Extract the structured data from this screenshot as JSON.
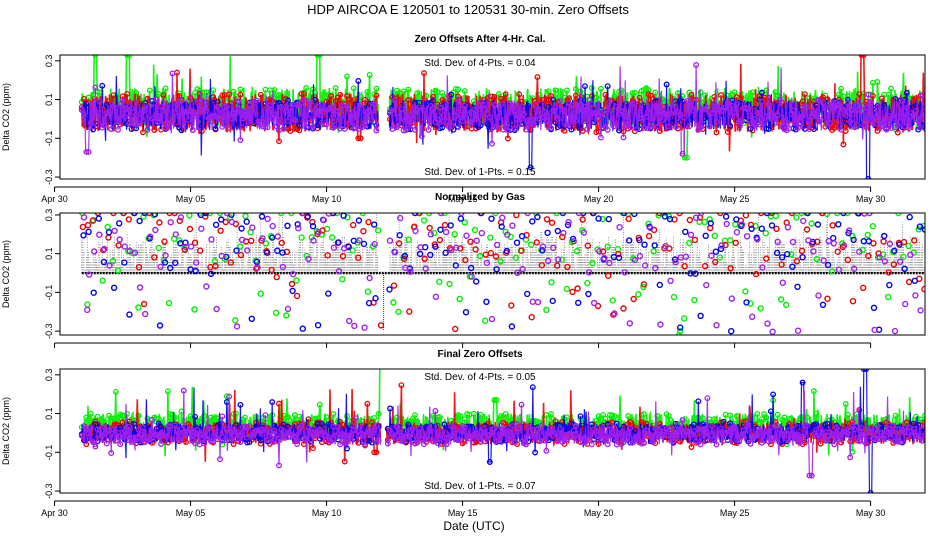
{
  "figure": {
    "title": "HDP    AIRCOA E   120501 to 120531   30-min. Zero Offsets",
    "xlabel": "Date (UTC)"
  },
  "chart_data": [
    {
      "type": "line",
      "title": "Zero Offsets After 4-Hr. Cal.",
      "ylabel": "Delta CO2 (ppm)",
      "ylim": [
        -0.31,
        0.33
      ],
      "yticks": [
        -0.3,
        -0.1,
        0.1,
        0.3
      ],
      "ytick_labels": [
        "-0.3",
        "-0.1",
        "0.1",
        "0.3"
      ],
      "xlim_day": [
        0.2,
        32.0
      ],
      "xticks_day": [
        0,
        5,
        10,
        15,
        20,
        25,
        30
      ],
      "xtick_labels": [
        "Apr 30",
        "May 05",
        "May 10",
        "May 15",
        "May 20",
        "May 25",
        "May 30"
      ],
      "annotation_top": "Std. Dev. of 4-Pts. =  0.04",
      "annotation_bottom": "Std. Dev. of 1-Pts. =  0.15",
      "day_range": [
        1.0,
        32.0
      ],
      "gap": [
        11.9,
        12.3
      ],
      "series": [
        {
          "name": "green",
          "color": "#00ee00",
          "base": 0.06,
          "spread": 0.1,
          "spikes": [
            [
              1.5,
              0.33
            ],
            [
              2.7,
              0.33
            ],
            [
              9.7,
              0.33
            ],
            [
              23.2,
              -0.2
            ]
          ]
        },
        {
          "name": "red",
          "color": "#ee0000",
          "base": 0.03,
          "spread": 0.1,
          "spikes": [
            [
              11.2,
              -0.1
            ],
            [
              29.7,
              0.33
            ]
          ]
        },
        {
          "name": "blue",
          "color": "#0000ee",
          "base": 0.02,
          "spread": 0.08,
          "spikes": [
            [
              12.1,
              -0.31
            ],
            [
              17.5,
              -0.25
            ],
            [
              29.9,
              -0.31
            ]
          ]
        },
        {
          "name": "purple",
          "color": "#a020f0",
          "base": 0.02,
          "spread": 0.08,
          "spikes": [
            [
              1.2,
              -0.17
            ],
            [
              23.1,
              -0.18
            ]
          ]
        }
      ]
    },
    {
      "type": "scatter",
      "title": "Normalized by Gas",
      "ylabel": "Delta CO2 (ppm)",
      "ylim": [
        -0.32,
        0.31
      ],
      "yticks": [
        -0.3,
        -0.1,
        0.1,
        0.3
      ],
      "ytick_labels": [
        "-0.3",
        "-0.1",
        "0.1",
        "0.3"
      ],
      "xlim_day": [
        0.2,
        32.0
      ],
      "xticks_day": [
        0,
        5,
        10,
        15,
        20,
        25,
        30
      ],
      "xtick_labels": [
        "",
        "",
        "",
        "",
        "",
        "",
        ""
      ],
      "annotation_top": "",
      "annotation_bottom": "",
      "day_range": [
        1.0,
        32.0
      ],
      "gap": [
        11.9,
        12.3
      ],
      "baseline": 0.0,
      "series": [
        {
          "name": "black",
          "color": "#000000",
          "base": 0.0,
          "spread": 0.1,
          "spikes": [
            [
              12.1,
              -0.3
            ]
          ]
        },
        {
          "name": "green",
          "color": "#00ee00",
          "base": 0.12,
          "spread": 0.2,
          "spikes": [
            [
              23.0,
              -0.3
            ]
          ]
        },
        {
          "name": "red",
          "color": "#ee0000",
          "base": 0.06,
          "spread": 0.2,
          "spikes": [
            [
              12.0,
              -0.27
            ]
          ]
        },
        {
          "name": "blue",
          "color": "#0000ee",
          "base": 0.02,
          "spread": 0.2,
          "spikes": [
            [
              11.8,
              -0.13
            ]
          ]
        },
        {
          "name": "purple",
          "color": "#a020f0",
          "base": 0.0,
          "spread": 0.2,
          "spikes": [
            [
              1.2,
              -0.19
            ]
          ]
        }
      ]
    },
    {
      "type": "line",
      "title": "Final Zero Offsets",
      "ylabel": "Delta CO2 (ppm)",
      "ylim": [
        -0.31,
        0.33
      ],
      "yticks": [
        -0.3,
        -0.1,
        0.1,
        0.3
      ],
      "ytick_labels": [
        "-0.3",
        "-0.1",
        "0.1",
        "0.3"
      ],
      "xlim_day": [
        0.2,
        32.0
      ],
      "xticks_day": [
        0,
        5,
        10,
        15,
        20,
        25,
        30
      ],
      "xtick_labels": [
        "Apr 30",
        "May 05",
        "May 10",
        "May 15",
        "May 20",
        "May 25",
        "May 30"
      ],
      "annotation_top": "Std. Dev. of 4-Pts. =  0.05",
      "annotation_bottom": "Std. Dev. of 1-Pts. =  0.07",
      "day_range": [
        1.0,
        32.0
      ],
      "gap": [
        12.0,
        12.2
      ],
      "series": [
        {
          "name": "green",
          "color": "#00ee00",
          "base": 0.04,
          "spread": 0.06,
          "spikes": [
            [
              12.0,
              0.33
            ],
            [
              16.2,
              0.17
            ]
          ]
        },
        {
          "name": "red",
          "color": "#ee0000",
          "base": 0.0,
          "spread": 0.06,
          "spikes": [
            [
              11.8,
              -0.1
            ]
          ]
        },
        {
          "name": "blue",
          "color": "#0000ee",
          "base": 0.0,
          "spread": 0.05,
          "spikes": [
            [
              12.1,
              -0.31
            ],
            [
              16.0,
              -0.15
            ],
            [
              27.5,
              0.26
            ],
            [
              29.8,
              0.33
            ],
            [
              30.0,
              -0.31
            ]
          ]
        },
        {
          "name": "purple",
          "color": "#a020f0",
          "base": -0.01,
          "spread": 0.05,
          "spikes": [
            [
              27.8,
              -0.22
            ],
            [
              1.5,
              -0.07
            ]
          ]
        }
      ]
    }
  ]
}
